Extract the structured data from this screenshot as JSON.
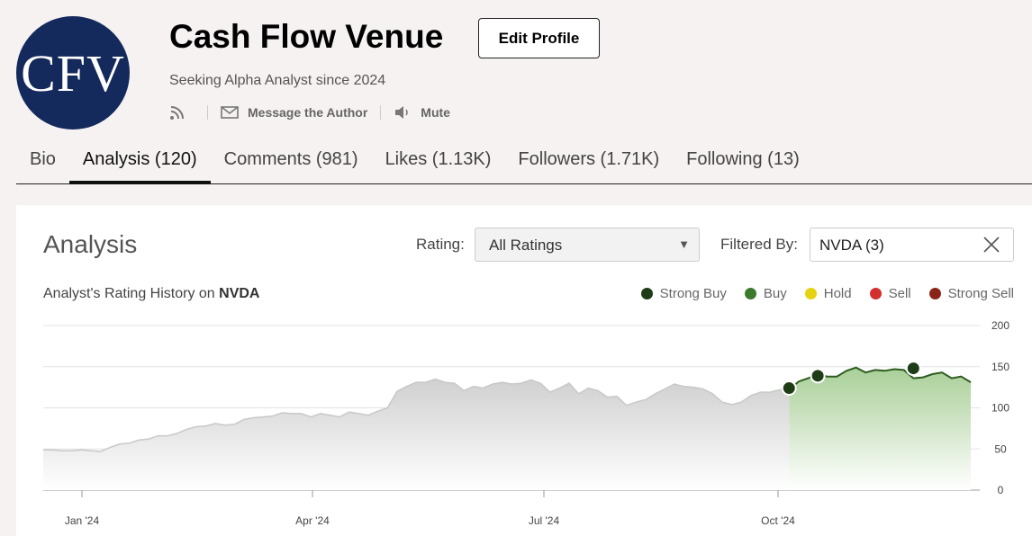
{
  "profile": {
    "avatar_text": "CFV",
    "name": "Cash Flow Venue",
    "edit_label": "Edit Profile",
    "since": "Seeking Alpha Analyst since 2024",
    "message_label": "Message the Author",
    "mute_label": "Mute"
  },
  "tabs": [
    {
      "label": "Bio",
      "active": false
    },
    {
      "label": "Analysis (120)",
      "active": true
    },
    {
      "label": "Comments (981)",
      "active": false
    },
    {
      "label": "Likes (1.13K)",
      "active": false
    },
    {
      "label": "Followers (1.71K)",
      "active": false
    },
    {
      "label": "Following (13)",
      "active": false
    }
  ],
  "analysis": {
    "title": "Analysis",
    "rating_label": "Rating:",
    "rating_value": "All Ratings",
    "filter_label": "Filtered By:",
    "filter_value": "NVDA (3)",
    "chart_heading_prefix": "Analyst's Rating History on ",
    "chart_heading_ticker": "NVDA"
  },
  "legend": [
    {
      "label": "Strong Buy",
      "color": "#1e3d17"
    },
    {
      "label": "Buy",
      "color": "#3c7a2b"
    },
    {
      "label": "Hold",
      "color": "#e6d20e"
    },
    {
      "label": "Sell",
      "color": "#d32f2f"
    },
    {
      "label": "Strong Sell",
      "color": "#8b2418"
    }
  ],
  "chart_data": {
    "type": "area",
    "y_ticks": [
      0,
      50,
      100,
      150,
      200
    ],
    "ylim": [
      0,
      200
    ],
    "x_ticks": [
      "Jan '24",
      "Apr '24",
      "Jul '24",
      "Oct '24"
    ],
    "series": [
      {
        "values": [
          49,
          49,
          48,
          48,
          49,
          48,
          47,
          52,
          56,
          57,
          61,
          62,
          66,
          66,
          69,
          74,
          77,
          78,
          81,
          79,
          80,
          86,
          88,
          89,
          90,
          94,
          93,
          93,
          89,
          93,
          91,
          89,
          95,
          93,
          91,
          96,
          100,
          120,
          126,
          131,
          131,
          135,
          131,
          130,
          121,
          126,
          124,
          129,
          131,
          129,
          130,
          134,
          130,
          119,
          124,
          130,
          117,
          124,
          121,
          113,
          114,
          103,
          107,
          110,
          117,
          123,
          129,
          126,
          125,
          123,
          117,
          107,
          104,
          107,
          115,
          119,
          119,
          122,
          122,
          132,
          136,
          141,
          138,
          138,
          145,
          149,
          143,
          146,
          145,
          147,
          146,
          136,
          137,
          141,
          143,
          136,
          138,
          131
        ],
        "color_before": "#c8c8c8",
        "color_after": "#2e5d1f"
      }
    ],
    "ratings": [
      {
        "label": "Strong Buy",
        "value": 124
      },
      {
        "label": "Strong Buy",
        "value": 139
      },
      {
        "label": "Strong Buy",
        "value": 148
      }
    ]
  }
}
